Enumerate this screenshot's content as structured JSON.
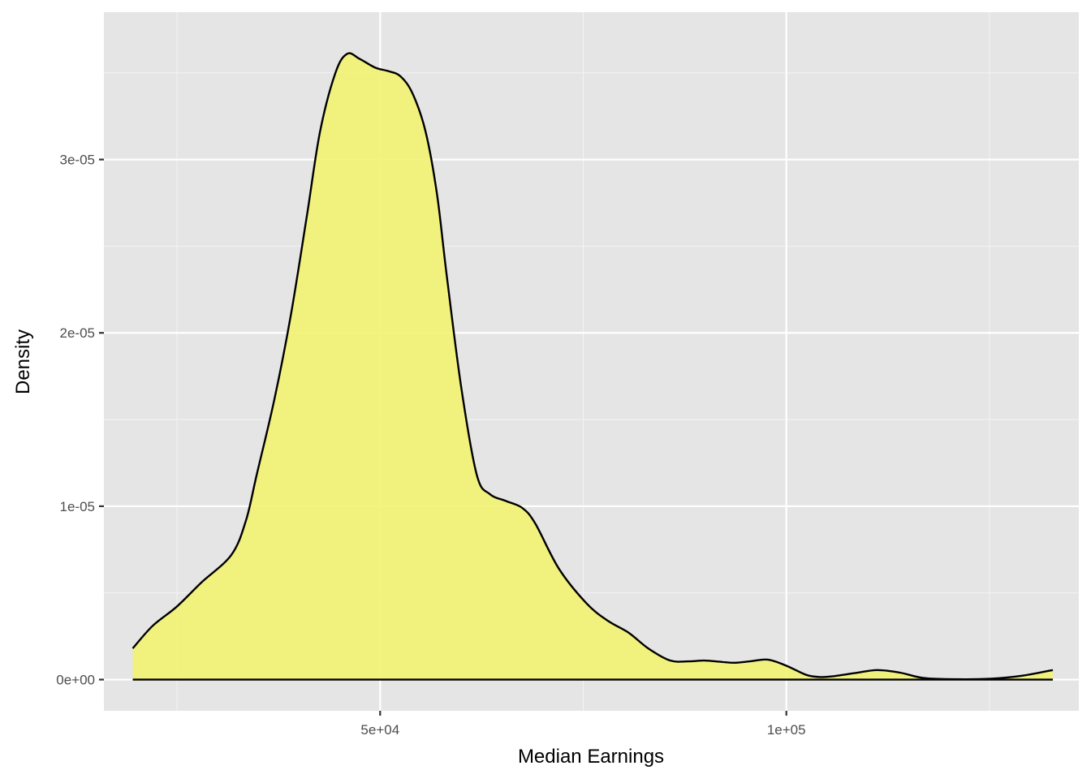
{
  "chart_data": {
    "type": "area",
    "subtype": "density",
    "title": "",
    "xlabel": "Median Earnings",
    "ylabel": "Density",
    "xlim": [
      16000,
      136000
    ],
    "ylim": [
      -1.8e-06,
      3.85e-05
    ],
    "x_ticks": [
      {
        "value": 50000,
        "label": "5e+04"
      },
      {
        "value": 100000,
        "label": "1e+05"
      }
    ],
    "x_minor_ticks": [
      25000,
      75000,
      125000
    ],
    "y_ticks": [
      {
        "value": 0,
        "label": "0e+00"
      },
      {
        "value": 1e-05,
        "label": "1e-05"
      },
      {
        "value": 2e-05,
        "label": "2e-05"
      },
      {
        "value": 3e-05,
        "label": "3e-05"
      }
    ],
    "y_minor_ticks": [
      5e-06,
      1.5e-05,
      2.5e-05,
      3.5e-05
    ],
    "grid": true,
    "legend": null,
    "series": [
      {
        "name": "density",
        "fill": "#f2f272",
        "fill_opacity": 0.9,
        "stroke": "#000000",
        "x": [
          19550,
          22000,
          24950,
          28000,
          31700,
          33500,
          34800,
          37000,
          39000,
          41000,
          42600,
          44500,
          45950,
          47500,
          49400,
          51000,
          52500,
          54000,
          55600,
          57000,
          58200,
          60000,
          61900,
          63500,
          65500,
          67500,
          69100,
          72000,
          75400,
          78000,
          80600,
          83000,
          85700,
          88000,
          89900,
          92000,
          93600,
          95500,
          97700,
          100000,
          102400,
          104000,
          105500,
          108500,
          111200,
          114000,
          116900,
          121000,
          125200,
          129000,
          132800
        ],
        "y": [
          1.8e-06,
          3.1e-06,
          4.2e-06,
          5.6e-06,
          7.2e-06,
          9.2e-06,
          1.18e-05,
          1.62e-05,
          2.1e-05,
          2.68e-05,
          3.16e-05,
          3.5e-05,
          3.61e-05,
          3.58e-05,
          3.53e-05,
          3.51e-05,
          3.48e-05,
          3.38e-05,
          3.16e-05,
          2.8e-05,
          2.33e-05,
          1.68e-05,
          1.18e-05,
          1.07e-05,
          1.03e-05,
          9.9e-06,
          9e-06,
          6.4e-06,
          4.4e-06,
          3.4e-06,
          2.7e-06,
          1.8e-06,
          1.1e-06,
          1.05e-06,
          1.1e-06,
          1.02e-06,
          9.7e-07,
          1.05e-06,
          1.15e-06,
          8e-07,
          2.8e-07,
          1.5e-07,
          1.8e-07,
          3.8e-07,
          5.5e-07,
          4e-07,
          9e-08,
          2e-08,
          5e-08,
          2.2e-07,
          5.5e-07
        ]
      }
    ]
  },
  "colors": {
    "panel_background": "#e5e5e5",
    "grid_major": "#ffffff",
    "grid_minor": "#f2f2f2",
    "tick_label": "#4d4d4d",
    "tick_mark": "#333333",
    "density_fill": "#f2f272",
    "density_stroke": "#000000"
  }
}
